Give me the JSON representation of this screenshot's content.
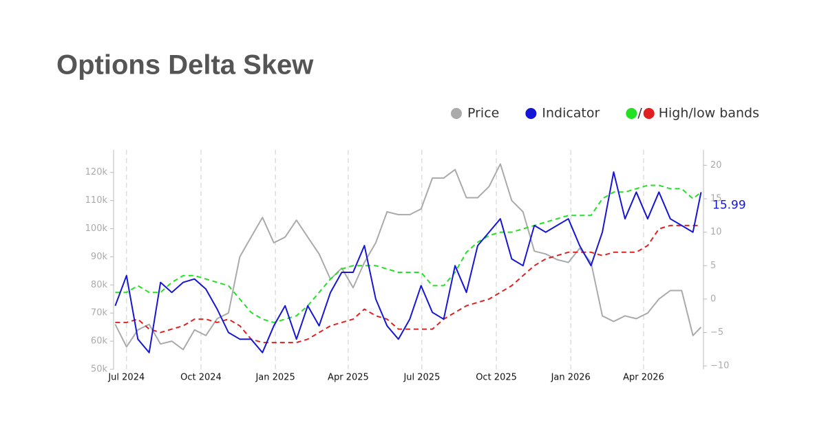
{
  "chart_data": {
    "type": "line",
    "title": "Options Delta Skew",
    "x": [
      "2024-06-17",
      "2024-07-01",
      "2024-07-15",
      "2024-07-29",
      "2024-08-12",
      "2024-08-26",
      "2024-09-09",
      "2024-09-23",
      "2024-10-07",
      "2024-10-21",
      "2024-11-04",
      "2024-11-18",
      "2024-12-02",
      "2024-12-16",
      "2024-12-30",
      "2025-01-13",
      "2025-01-27",
      "2025-02-10",
      "2025-02-24",
      "2025-03-10",
      "2025-03-24",
      "2025-04-07",
      "2025-04-21",
      "2025-05-05",
      "2025-05-19",
      "2025-06-02",
      "2025-06-16",
      "2025-06-30",
      "2025-07-14",
      "2025-07-28",
      "2025-08-11",
      "2025-08-25",
      "2025-09-08",
      "2025-09-22",
      "2025-10-06",
      "2025-10-20",
      "2025-11-03",
      "2025-11-17",
      "2025-12-01",
      "2025-12-15",
      "2025-12-29",
      "2026-01-12",
      "2026-01-26",
      "2026-02-09",
      "2026-02-23",
      "2026-03-09",
      "2026-03-23",
      "2026-04-06",
      "2026-04-20",
      "2026-05-04",
      "2026-05-18",
      "2026-06-01",
      "2026-06-11"
    ],
    "xlim": [
      "2024-06-15",
      "2026-06-14"
    ],
    "xticks": [
      {
        "value": "2024-07-01",
        "label": "Jul 2024"
      },
      {
        "value": "2024-10-01",
        "label": "Oct 2024"
      },
      {
        "value": "2025-01-01",
        "label": "Jan 2025"
      },
      {
        "value": "2025-04-01",
        "label": "Apr 2025"
      },
      {
        "value": "2025-07-01",
        "label": "Jul 2025"
      },
      {
        "value": "2025-10-01",
        "label": "Oct 2025"
      },
      {
        "value": "2026-01-01",
        "label": "Jan 2026"
      },
      {
        "value": "2026-04-01",
        "label": "Apr 2026"
      }
    ],
    "ylim": [
      50000,
      128000
    ],
    "yticks": [
      {
        "value": 50000,
        "label": "50k"
      },
      {
        "value": 60000,
        "label": "60k"
      },
      {
        "value": 70000,
        "label": "70k"
      },
      {
        "value": 80000,
        "label": "80k"
      },
      {
        "value": 90000,
        "label": "90k"
      },
      {
        "value": 100000,
        "label": "100k"
      },
      {
        "value": 110000,
        "label": "110k"
      },
      {
        "value": 120000,
        "label": "120k"
      }
    ],
    "y2lim": [
      -10.5,
      22.3
    ],
    "y2ticks": [
      {
        "value": -10,
        "label": "−10"
      },
      {
        "value": -5,
        "label": "−5"
      },
      0,
      5,
      10,
      15,
      20
    ],
    "grid": true,
    "series": [
      {
        "name": "Price",
        "color": "#aaaaaa",
        "axis": "y",
        "values": [
          66000,
          58000,
          64000,
          66000,
          59000,
          60000,
          57000,
          64000,
          62000,
          68000,
          70000,
          90000,
          97000,
          104000,
          95000,
          97000,
          103000,
          97000,
          91000,
          82000,
          86000,
          79000,
          88000,
          95000,
          106000,
          105000,
          105000,
          107000,
          118000,
          118000,
          121000,
          111000,
          111000,
          115000,
          123000,
          110000,
          106000,
          92000,
          91000,
          89000,
          88000,
          93000,
          88000,
          69000,
          67000,
          69000,
          68000,
          70000,
          75000,
          78000,
          78000,
          62000,
          65000
        ]
      },
      {
        "name": "Indicator",
        "color": "#1515d6",
        "axis": "y2",
        "end_label": true,
        "values": [
          -1,
          3.5,
          -6,
          -8,
          2.5,
          1,
          2.5,
          3,
          1.5,
          -1.5,
          -5,
          -6,
          -6,
          -8,
          -4,
          -1,
          -6,
          -1,
          -4,
          1,
          4,
          4,
          8,
          0,
          -4,
          -6,
          -3,
          2,
          -2,
          -3,
          5,
          1,
          8,
          10,
          12,
          6,
          5,
          11,
          10,
          11,
          12,
          8,
          5,
          10,
          19,
          12,
          16,
          12,
          16,
          12,
          11,
          10,
          15.99
        ]
      }
    ],
    "bands": {
      "name": "High/low bands",
      "separator": "/",
      "series": [
        {
          "color": "#22e022",
          "axis": "y2",
          "values": [
            1,
            1,
            2,
            1,
            1,
            2.5,
            3.5,
            3.5,
            3,
            2.5,
            2,
            0,
            -2,
            -3,
            -3.5,
            -3,
            -2.5,
            -1,
            1,
            3,
            4.5,
            5,
            5,
            5,
            4.5,
            4,
            4,
            4,
            2,
            2,
            4,
            7,
            8.5,
            9.5,
            10,
            10,
            10.5,
            11,
            11.5,
            12,
            12.5,
            12.5,
            12.5,
            15,
            16,
            16,
            16.5,
            17,
            17,
            16.5,
            16.5,
            15,
            16
          ]
        },
        {
          "color": "#e02020",
          "axis": "y2",
          "values": [
            -3.5,
            -3.5,
            -3,
            -4.5,
            -5,
            -4.5,
            -4,
            -3,
            -3,
            -3.5,
            -3,
            -4,
            -6,
            -6.5,
            -6.5,
            -6.5,
            -6.5,
            -6,
            -5,
            -4,
            -3.5,
            -3,
            -1.5,
            -2.5,
            -3,
            -4.5,
            -4.5,
            -4.5,
            -4.5,
            -3,
            -2,
            -1,
            -0.5,
            0,
            1,
            2,
            3.5,
            5,
            6,
            6.5,
            7,
            7,
            7,
            6.5,
            7,
            7,
            7,
            8,
            10.5,
            11,
            11,
            11,
            11
          ]
        }
      ]
    }
  }
}
